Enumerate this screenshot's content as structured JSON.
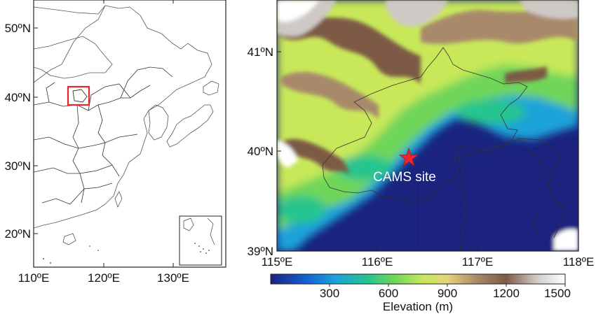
{
  "left_map": {
    "lon_ticks": [
      "110ºE",
      "120ºE",
      "130ºE"
    ],
    "lat_ticks": [
      "50ºN",
      "40ºN",
      "30ºN",
      "20ºN"
    ],
    "highlight_color": "#e8262b"
  },
  "right_map": {
    "lon_ticks": [
      "115ºE",
      "116ºE",
      "117ºE",
      "118ºE"
    ],
    "lat_ticks": [
      "41ºN",
      "40ºN",
      "39ºN"
    ],
    "site_label": "CAMS site",
    "site_marker_color": "#e8262b"
  },
  "colorbar": {
    "ticks": [
      "300",
      "600",
      "900",
      "1200",
      "1500"
    ],
    "label": "Elevation (m)",
    "colors": [
      "#1a237e",
      "#1560d4",
      "#1aa3d9",
      "#27c48e",
      "#6fd65a",
      "#c8e85a",
      "#e6d37a",
      "#a88a6a",
      "#7d5a45",
      "#cfc9c6",
      "#ffffff"
    ]
  }
}
